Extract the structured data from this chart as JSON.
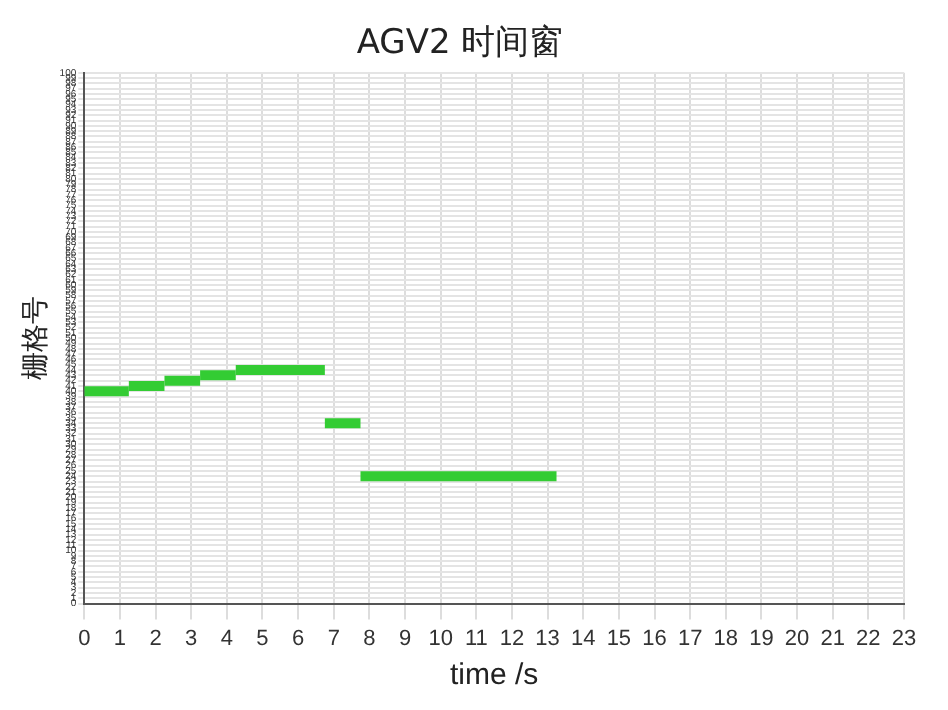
{
  "chart_data": {
    "type": "line",
    "title": "AGV2 时间窗",
    "xlabel": "time /s",
    "ylabel": "栅格号",
    "series": [
      {
        "color": "#33cc33",
        "x": [
          0,
          1.25
        ],
        "values": [
          40,
          40
        ]
      },
      {
        "color": "#33cc33",
        "x": [
          1.25,
          2.25
        ],
        "values": [
          41,
          41
        ]
      },
      {
        "color": "#33cc33",
        "x": [
          2.25,
          3.25
        ],
        "values": [
          42,
          42
        ]
      },
      {
        "color": "#33cc33",
        "x": [
          3.25,
          4.25
        ],
        "values": [
          43,
          43
        ]
      },
      {
        "color": "#33cc33",
        "x": [
          4.25,
          6.75
        ],
        "values": [
          44,
          44
        ]
      },
      {
        "color": "#33cc33",
        "x": [
          6.75,
          7.75
        ],
        "values": [
          34,
          34
        ]
      },
      {
        "color": "#33cc33",
        "x": [
          7.75,
          13.25
        ],
        "values": [
          24,
          24
        ]
      }
    ],
    "xlim": [
      0,
      23
    ],
    "xticks": [
      0,
      1,
      2,
      3,
      4,
      5,
      6,
      7,
      8,
      9,
      10,
      11,
      12,
      13,
      14,
      15,
      16,
      17,
      18,
      19,
      20,
      21,
      22,
      23
    ],
    "ylim": [
      0,
      100
    ],
    "yticks": [
      0,
      1,
      2,
      3,
      4,
      5,
      6,
      7,
      8,
      9,
      10,
      11,
      12,
      13,
      14,
      15,
      16,
      17,
      18,
      19,
      20,
      21,
      22,
      23,
      24,
      25,
      26,
      27,
      28,
      29,
      30,
      31,
      32,
      33,
      34,
      35,
      36,
      37,
      38,
      39,
      40,
      41,
      42,
      43,
      44,
      45,
      46,
      47,
      48,
      49,
      50,
      51,
      52,
      53,
      54,
      55,
      56,
      57,
      58,
      59,
      60,
      61,
      62,
      63,
      64,
      65,
      66,
      67,
      68,
      69,
      70,
      71,
      72,
      73,
      74,
      75,
      76,
      77,
      78,
      79,
      80,
      81,
      82,
      83,
      84,
      85,
      86,
      87,
      88,
      89,
      90,
      91,
      92,
      93,
      94,
      95,
      96,
      97,
      98,
      99,
      100
    ],
    "grid": true,
    "marker": "none",
    "line_style": "solid"
  }
}
